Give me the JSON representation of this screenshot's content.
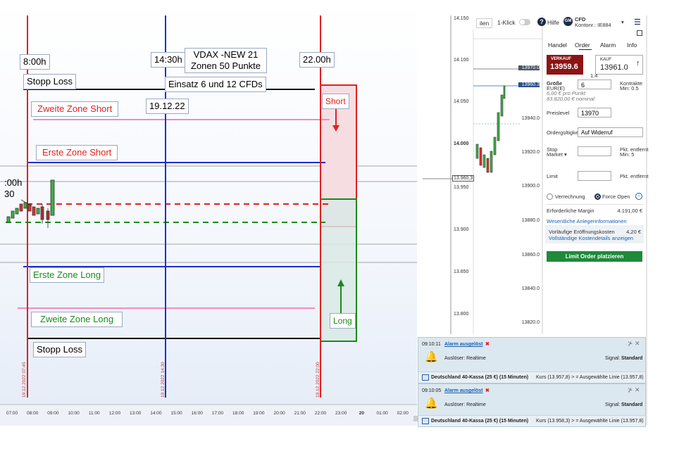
{
  "toolbar": {
    "partial_tab": "ilen",
    "one_click": "1-Klick",
    "help": "Hilfe",
    "avatar": "GM",
    "account_type": "CFD",
    "account_number": "Kontonr.: IE884"
  },
  "chart": {
    "annotations": {
      "start_time": "8:00h",
      "mid_time": "14:30h",
      "vdax_line1": "VDAX -NEW 21",
      "vdax_line2": "Zonen 50  Punkte",
      "end_time": "22.00h",
      "stop_loss_top": "Stopp Loss",
      "stake": "Einsatz 6 und 12 CFDs",
      "short": "Short",
      "second_zone_short": "Zweite Zone Short",
      "date": "19.12.22",
      "first_zone_short": "Erste Zone Short",
      "cut_time": ":00h",
      "cut_minutes": "30",
      "first_zone_long": "Erste Zone Long",
      "second_zone_long": "Zweite Zone Long",
      "long": "Long",
      "stop_loss_bottom": "Stopp Loss"
    },
    "date_labels": [
      "19.12.2022 07:45",
      "19.12.2022 14:30",
      "19.12.2022 22:00"
    ],
    "time_axis": [
      "07:00",
      "08:00",
      "09:00",
      "10:00",
      "11:00",
      "12:00",
      "13:00",
      "14:00",
      "15:00",
      "16:00",
      "17:00",
      "18:00",
      "19:00",
      "20:00",
      "21:00",
      "22:00",
      "23:00",
      "20",
      "01:00",
      "02:00"
    ]
  },
  "price_axis": [
    "14.150",
    "14.100",
    "14.050",
    "14.000",
    "13.960,3",
    "13.950",
    "13.900",
    "13.850",
    "13.800"
  ],
  "mini_chart_axis": [
    "13970.0",
    "13960.3",
    "13940.0",
    "13920.0",
    "13900.0",
    "13880.0",
    "13860.0",
    "13840.0",
    "13820.0"
  ],
  "order_panel": {
    "tabs": [
      "Handel",
      "Order",
      "Alarm",
      "Info"
    ],
    "sell_label": "VERKAUF",
    "sell_price": "13959.6",
    "buy_label": "KAUF",
    "buy_price": "13961.0",
    "spread_ratio": "1:4",
    "size_label": "Größe",
    "size_unit": "EUR(E)",
    "size_value": "6",
    "size_hint1": "Kontrakte",
    "size_hint2": "Min: 0.5",
    "per_point": "6,00 € pro Punkt",
    "nominal": "83.820,00 € nominal",
    "price_level_label": "Preislevel",
    "price_level_value": "13970",
    "validity_label": "Ordergültigkeit",
    "validity_value": "Auf Widerruf",
    "stop_label": "Stop",
    "stop_type": "Market ▾",
    "stop_hint1": "Pkt. entfernt",
    "stop_hint2": "Min: 5",
    "limit_label": "Limit",
    "limit_hint": "Pkt. entfernt",
    "netting": "Verrechnung",
    "force_open": "Force Open",
    "margin_label": "Erforderliche Margin",
    "margin_value": "4.191,00 €",
    "kid_link": "Wesentliche Anlegerinformationen",
    "costs_label": "Vorläufige Eröffnungskosten",
    "costs_value": "4,20 €",
    "costs_link": "Vollständige Kostendetails anzeigen",
    "submit": "Limit Order platzieren"
  },
  "alerts": [
    {
      "time": "09:10:11",
      "title": "Alarm ausgelöst",
      "trigger": "Auslöser: Realtime",
      "signal_label": "Signal:",
      "signal_value": "Standard",
      "instrument": "Deutschland 40-Kassa (25 €) (15 Minuten)",
      "condition": "Kurs (13.957,8) > = Ausgewählte Linie (13.957,8)"
    },
    {
      "time": "09:10:05",
      "title": "Alarm ausgelöst",
      "trigger": "Auslöser: Realtime",
      "signal_label": "Signal:",
      "signal_value": "Standard",
      "instrument": "Deutschland 40-Kassa (25 €) (15 Minuten)",
      "condition": "Kurs (13.958,3) > = Ausgewählte Linie (13.957,8)"
    }
  ]
}
